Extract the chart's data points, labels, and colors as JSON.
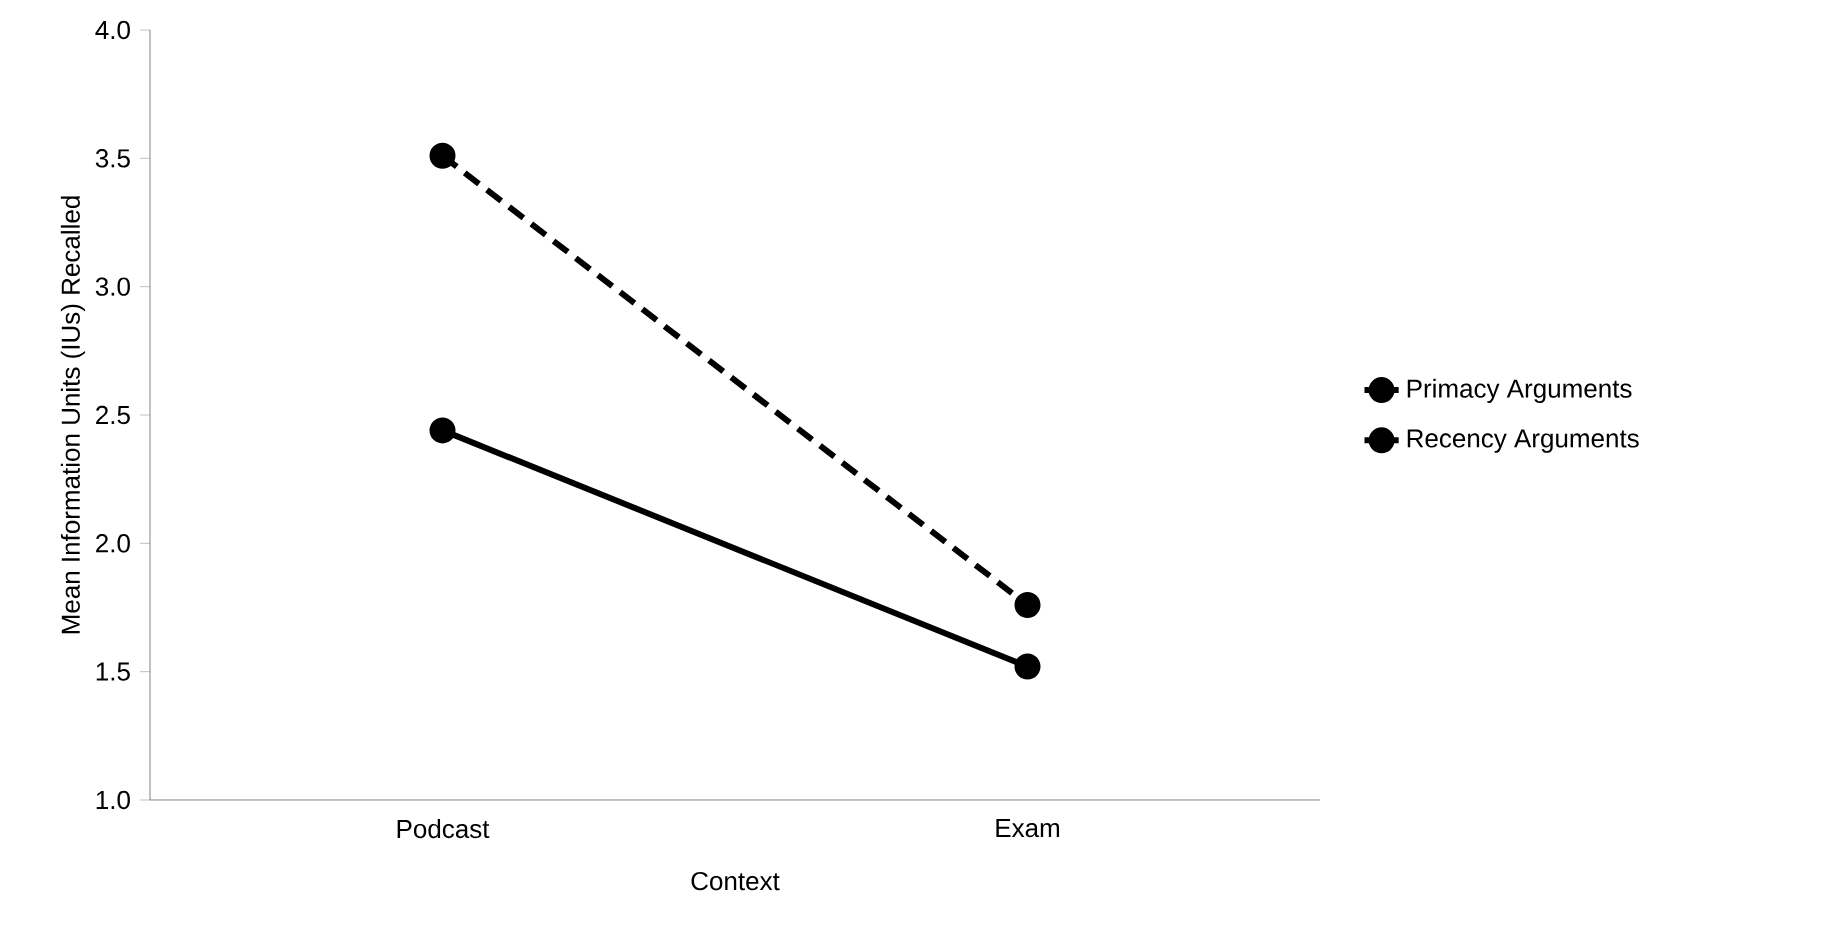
{
  "chart_data": {
    "type": "line",
    "xlabel": "Context",
    "ylabel": "Mean Information Units (IUs) Recalled",
    "categories": [
      "Podcast",
      "Exam"
    ],
    "series": [
      {
        "name": "Primacy Arguments",
        "color": "#000000",
        "line_style": "solid",
        "values": [
          2.44,
          1.52
        ]
      },
      {
        "name": "Recency Arguments",
        "color": "#000000",
        "line_style": "dashed",
        "values": [
          3.51,
          1.76
        ]
      }
    ],
    "ylim": [
      1.0,
      4.0
    ],
    "yticks": [
      {
        "value": 1.0,
        "label": "1.0"
      },
      {
        "value": 1.5,
        "label": "1.5"
      },
      {
        "value": 2.0,
        "label": "2.0"
      },
      {
        "value": 2.5,
        "label": "2.5"
      },
      {
        "value": 3.0,
        "label": "3.0"
      },
      {
        "value": 3.5,
        "label": "3.5"
      },
      {
        "value": 4.0,
        "label": "4.0"
      }
    ],
    "grid": false,
    "legend": "right",
    "marker": "circle"
  }
}
